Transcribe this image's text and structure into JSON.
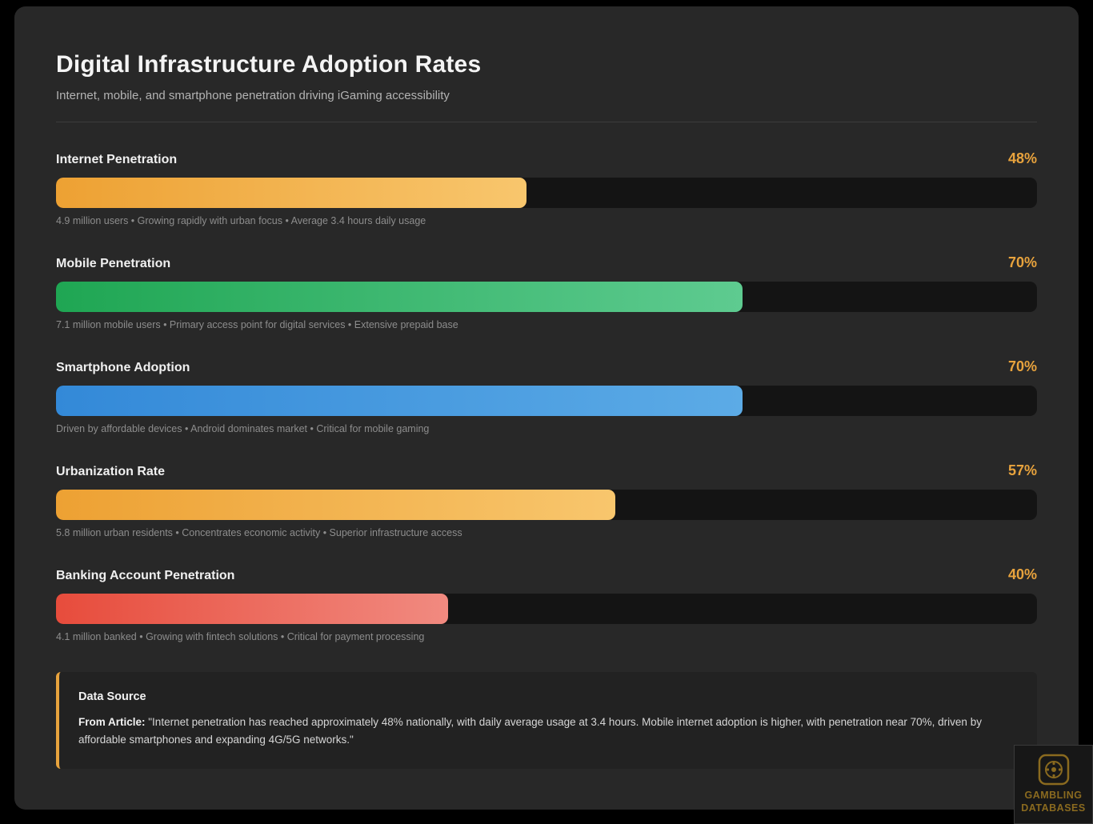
{
  "colors": {
    "accent": "#e8a33d",
    "card_background": "#282828",
    "page_background": "#000000",
    "track_background": "#141414"
  },
  "header": {
    "title": "Digital Infrastructure Adoption Rates",
    "subtitle": "Internet, mobile, and smartphone penetration driving iGaming accessibility"
  },
  "chart_data": {
    "type": "bar",
    "orientation": "horizontal",
    "title": "Digital Infrastructure Adoption Rates",
    "subtitle": "Internet, mobile, and smartphone penetration driving iGaming accessibility",
    "xlim": [
      0,
      100
    ],
    "grid": false,
    "legend": false,
    "categories": [
      "Internet Penetration",
      "Mobile Penetration",
      "Smartphone Adoption",
      "Urbanization Rate",
      "Banking Account Penetration"
    ],
    "values": [
      48,
      70,
      70,
      57,
      40
    ],
    "bars": [
      {
        "label": "Internet Penetration",
        "value": 48,
        "display": "48%",
        "caption": "4.9 million users • Growing rapidly with urban focus • Average 3.4 hours daily usage",
        "gradient": [
          "#eda133",
          "#f8c66d"
        ]
      },
      {
        "label": "Mobile Penetration",
        "value": 70,
        "display": "70%",
        "caption": "7.1 million mobile users • Primary access point for digital services • Extensive prepaid base",
        "gradient": [
          "#1fa653",
          "#5ecb90"
        ]
      },
      {
        "label": "Smartphone Adoption",
        "value": 70,
        "display": "70%",
        "caption": "Driven by affordable devices • Android dominates market • Critical for mobile gaming",
        "gradient": [
          "#3389d8",
          "#5cabe6"
        ]
      },
      {
        "label": "Urbanization Rate",
        "value": 57,
        "display": "57%",
        "caption": "5.8 million urban residents • Concentrates economic activity • Superior infrastructure access",
        "gradient": [
          "#eda133",
          "#f8c66d"
        ]
      },
      {
        "label": "Banking Account Penetration",
        "value": 40,
        "display": "40%",
        "caption": "4.1 million banked • Growing with fintech solutions • Critical for payment processing",
        "gradient": [
          "#e74c3c",
          "#f18a80"
        ]
      }
    ]
  },
  "data_source": {
    "heading": "Data Source",
    "prefix": "From Article:",
    "quote": " \"Internet penetration has reached approximately 48% nationally, with daily average usage at 3.4 hours. Mobile internet adoption is higher, with penetration near 70%, driven by affordable smartphones and expanding 4G/5G networks.\""
  },
  "watermark": {
    "line1": "GAMBLING",
    "line2": "DATABASES"
  }
}
